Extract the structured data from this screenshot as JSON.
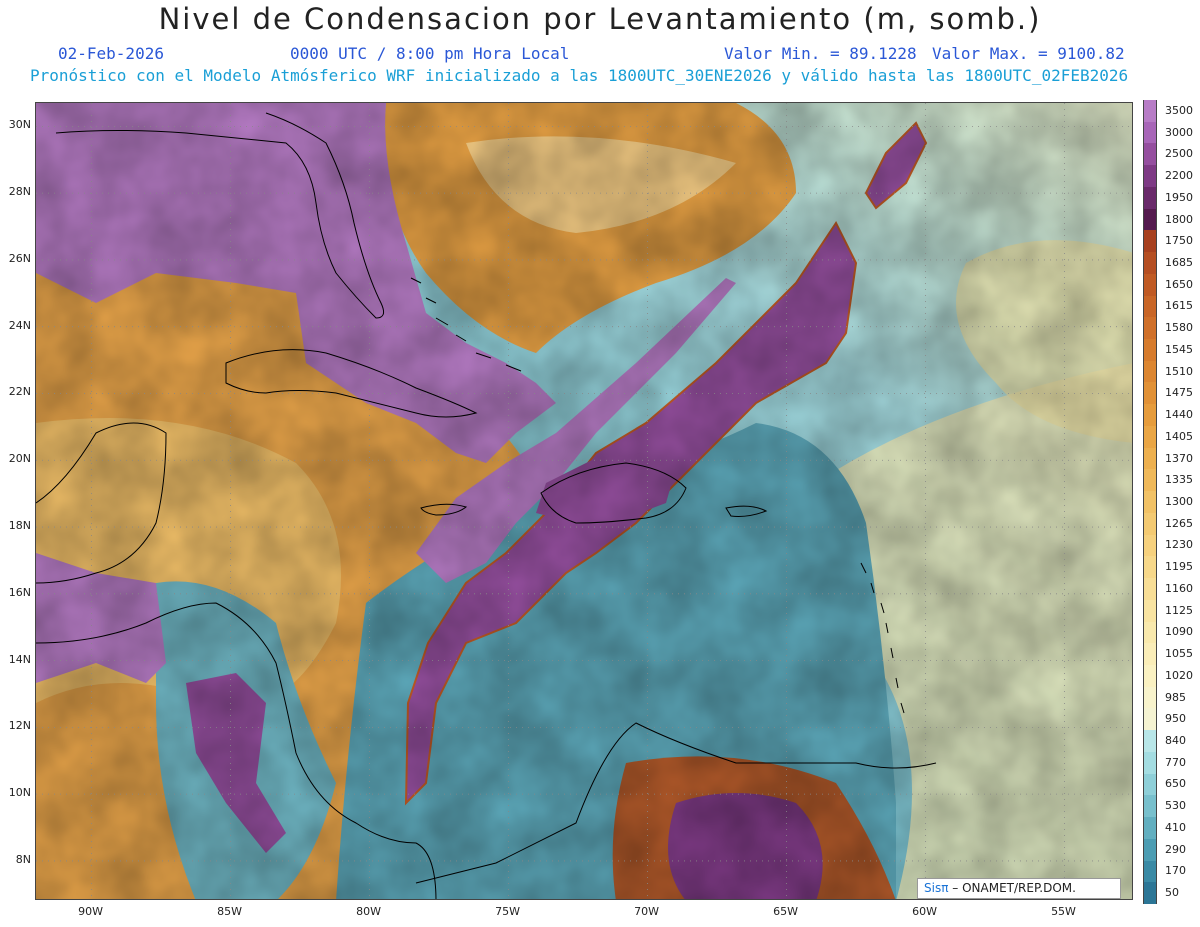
{
  "header": {
    "title": "Nivel de Condensacion por Levantamiento (m, somb.)",
    "date": "02-Feb-2026",
    "time": "0000 UTC / 8:00 pm Hora Local",
    "min": "Valor Min. = 89.1228",
    "max": "Valor Max. = 9100.82",
    "subtitle": "Pronóstico con el Modelo Atmósferico WRF inicializado a las 1800UTC_30ENE2026 y válido hasta las  1800UTC_02FEB2026"
  },
  "axes": {
    "lat_labels": [
      "30N",
      "28N",
      "26N",
      "24N",
      "22N",
      "20N",
      "18N",
      "16N",
      "14N",
      "12N",
      "10N",
      "8N"
    ],
    "lat_values": [
      30,
      28,
      26,
      24,
      22,
      20,
      18,
      16,
      14,
      12,
      10,
      8
    ],
    "lon_labels": [
      "90W",
      "85W",
      "80W",
      "75W",
      "70W",
      "65W",
      "60W",
      "55W"
    ],
    "lon_values": [
      -90,
      -85,
      -80,
      -75,
      -70,
      -65,
      -60,
      -55
    ],
    "lon_range": [
      -92,
      -52.5
    ],
    "lat_range": [
      6.8,
      30.7
    ]
  },
  "colorbar": {
    "labels": [
      "3500",
      "3000",
      "2500",
      "2200",
      "1950",
      "1800",
      "1750",
      "1685",
      "1650",
      "1615",
      "1580",
      "1545",
      "1510",
      "1475",
      "1440",
      "1405",
      "1370",
      "1335",
      "1300",
      "1265",
      "1230",
      "1195",
      "1160",
      "1125",
      "1090",
      "1055",
      "1020",
      "985",
      "950",
      "840",
      "770",
      "650",
      "530",
      "410",
      "290",
      "170",
      "50"
    ],
    "colors": [
      "#b77cc6",
      "#a866b8",
      "#954f9f",
      "#7e3a85",
      "#6a2a6b",
      "#551a4f",
      "#a8401f",
      "#b54e22",
      "#c05a24",
      "#c96627",
      "#d0702a",
      "#d67b2d",
      "#dc8631",
      "#e19136",
      "#e69c3c",
      "#eaa645",
      "#edb04f",
      "#f0b95a",
      "#f2c266",
      "#f4ca72",
      "#f6d17e",
      "#f7d88a",
      "#f8de96",
      "#f9e4a2",
      "#f9e9ad",
      "#faedb8",
      "#faf1c2",
      "#f8f3cc",
      "#f5f3d2",
      "#b8e6e8",
      "#a4dde2",
      "#8ecfd8",
      "#78c0cd",
      "#62afc0",
      "#4c9db3",
      "#3a8aa5",
      "#2c7696"
    ]
  },
  "credit": {
    "brand": "Sisπ",
    "text": "– ONAMET/REP.DOM."
  }
}
